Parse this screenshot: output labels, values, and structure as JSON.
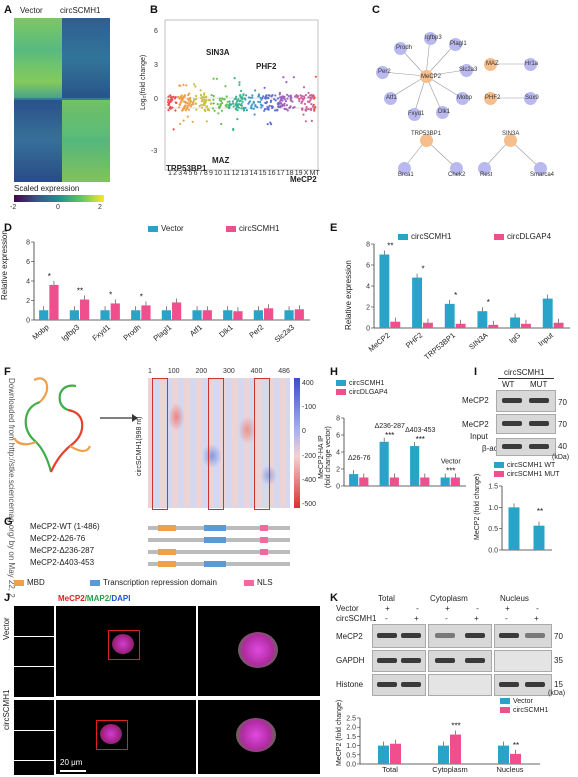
{
  "panels": {
    "A": {
      "label": "A",
      "col_labels": [
        "Vector",
        "circSCMH1"
      ],
      "scale_title": "Scaled expression",
      "scale_ticks": [
        "-2",
        "0",
        "2"
      ]
    },
    "B": {
      "label": "B",
      "ylabel": "Log₂(fold change)",
      "yticks": [
        "6",
        "3",
        "0",
        "-3"
      ],
      "xticks": [
        "1",
        "2",
        "3",
        "4",
        "5",
        "6",
        "7",
        "8",
        "9",
        "10",
        "11",
        "12",
        "13",
        "14",
        "15",
        "16",
        "17",
        "18",
        "19",
        "X",
        "MT"
      ],
      "annotations": [
        "SIN3A",
        "PHF2",
        "TRP53BP1",
        "MAZ",
        "MeCP2"
      ]
    },
    "C": {
      "label": "C",
      "mecp2_network": {
        "hub": "MeCP2",
        "targets": [
          "Prodh",
          "Igfbp3",
          "Plagl1",
          "Slc2a3",
          "Mobp",
          "Dlk1",
          "Fxyd1",
          "Atf1",
          "Per2"
        ]
      },
      "maz_pair": [
        "MAZ",
        "Hr1a"
      ],
      "phf2_pair": [
        "PHF2",
        "Sox9"
      ],
      "trp53bp1_network": {
        "hub": "TRP53BP1",
        "targets": [
          "Brca1",
          "Chek2"
        ]
      },
      "sin3a_network": {
        "hub": "SIN3A",
        "targets": [
          "Rest",
          "Smarca4"
        ]
      }
    },
    "D": {
      "label": "D",
      "legend": [
        "Vector",
        "circSCMH1"
      ]
    },
    "E": {
      "label": "E",
      "legend": [
        "circSCMH1",
        "circDLGAP4"
      ]
    },
    "F": {
      "label": "F",
      "side_text": "Downloaded from http://stke.sciencemag.org/ by on May 22, 2",
      "heatmap_label": "circSCMH1(998 nt)",
      "top_ticks": [
        "1",
        "100",
        "200",
        "300",
        "400",
        "486"
      ],
      "scale_ticks": [
        "400",
        "-100",
        "0",
        "-200",
        "-400",
        "-500"
      ]
    },
    "G": {
      "label": "G",
      "constructs": [
        "MeCP2-WT (1-486)",
        "MeCP2-Δ26-76",
        "MeCP2-Δ236-287",
        "MeCP2-Δ403-453"
      ],
      "domain_legend": [
        "MBD",
        "Transcription repression domain",
        "NLS"
      ]
    },
    "H": {
      "label": "H",
      "legend": [
        "circSCMH1",
        "circDLGAP4"
      ],
      "ylabel": "MeCP2-HA IP\n(fold change vector)",
      "bar_labels": [
        "Δ26-76",
        "Δ236-287",
        "Δ403-453",
        "Vector"
      ],
      "significance": [
        "***",
        "***",
        "***"
      ]
    },
    "I": {
      "label": "I",
      "header": "circSCMH1",
      "lanes": [
        "WT",
        "MUT"
      ],
      "rows": [
        "MeCP2",
        "MeCP2",
        "β-actin"
      ],
      "input_label": "Input",
      "kda": [
        "70",
        "70",
        "40"
      ],
      "kda_unit": "(kDa)",
      "legend": [
        "circSCMH1 WT",
        "circSCMH1 MUT"
      ],
      "ylabel": "MeCP2 (fold change)",
      "significance": "**"
    },
    "J": {
      "label": "J",
      "title_parts": [
        "MeCP2",
        "/MAP2/",
        "DAPI"
      ],
      "rows": [
        "Vector",
        "circSCMH1"
      ],
      "scale_bar": "20 μm"
    },
    "K": {
      "label": "K",
      "fractions": [
        "Total",
        "Cytoplasm",
        "Nucleus"
      ],
      "row_vector": "Vector",
      "row_circ": "circSCMH1",
      "plus_minus_vector": [
        "+",
        "-",
        "+",
        "-",
        "+",
        "-"
      ],
      "plus_minus_circ": [
        "-",
        "+",
        "-",
        "+",
        "-",
        "+"
      ],
      "blots": [
        "MeCP2",
        "GAPDH",
        "Histone"
      ],
      "kda": [
        "70",
        "35",
        "15"
      ],
      "kda_unit": "(kDa)",
      "legend": [
        "Vector",
        "circSCMH1"
      ],
      "ylabel": "MeCP2 (fold change)",
      "significance": [
        "***",
        "**"
      ]
    }
  },
  "colors": {
    "vector_blue": "#2aa3c9",
    "circ_pink": "#ef4f8c",
    "node_blue": "#b9b9f0",
    "node_orange": "#f5be8c",
    "mbd_orange": "#f0a04a",
    "trd_blue": "#5b9bd5",
    "nls_pink": "#f06aa0"
  },
  "chart_data": [
    {
      "type": "bar",
      "panel": "D",
      "ylabel": "Relative expression",
      "ylim": [
        0,
        8
      ],
      "yticks": [
        "0",
        "2",
        "4",
        "6",
        "8"
      ],
      "categories": [
        "Mobp",
        "Igfbp3",
        "Fxyd1",
        "Prodh",
        "Plagl1",
        "Atf1",
        "Dlk1",
        "Per2",
        "Slc2a3"
      ],
      "series": [
        {
          "name": "Vector",
          "values": [
            1,
            1,
            1,
            1,
            1,
            1,
            1,
            1,
            1
          ]
        },
        {
          "name": "circSCMH1",
          "values": [
            3.6,
            2.1,
            1.7,
            1.5,
            1.8,
            1.0,
            0.9,
            1.2,
            1.1
          ]
        }
      ],
      "significance": [
        "*",
        "**",
        "*",
        "*",
        "",
        "",
        "",
        "",
        ""
      ]
    },
    {
      "type": "bar",
      "panel": "E",
      "ylabel": "Relative expression",
      "ylim": [
        0,
        8
      ],
      "yticks": [
        "0",
        "2",
        "4",
        "6",
        "8"
      ],
      "categories": [
        "MeCP2",
        "PHF2",
        "TRP53BP1",
        "SIN3A",
        "IgG",
        "Input"
      ],
      "series": [
        {
          "name": "circSCMH1",
          "values": [
            7.0,
            4.8,
            2.3,
            1.6,
            1.0,
            2.8
          ]
        },
        {
          "name": "circDLGAP4",
          "values": [
            0.6,
            0.5,
            0.4,
            0.3,
            0.4,
            0.5
          ]
        }
      ],
      "significance": [
        "**",
        "*",
        "*",
        "*",
        "",
        ""
      ]
    },
    {
      "type": "bar",
      "panel": "H",
      "ylim": [
        0,
        8
      ],
      "yticks": [
        "0",
        "2",
        "4",
        "6",
        "8"
      ],
      "categories": [
        "Δ26-76",
        "Δ236-287",
        "Δ403-453",
        "Vector"
      ],
      "series": [
        {
          "name": "circSCMH1",
          "values": [
            1.4,
            5.2,
            4.7,
            1.0
          ]
        },
        {
          "name": "circDLGAP4",
          "values": [
            1.0,
            1.0,
            1.0,
            1.0
          ]
        }
      ]
    },
    {
      "type": "bar",
      "panel": "I",
      "ylabel": "MeCP2 (fold change)",
      "ylim": [
        0,
        1.5
      ],
      "yticks": [
        "0.0",
        "0.5",
        "1.0",
        "1.5"
      ],
      "categories": [
        "circSCMH1 WT",
        "circSCMH1 MUT"
      ],
      "values": [
        1.0,
        0.57
      ]
    },
    {
      "type": "bar",
      "panel": "K",
      "ylabel": "MeCP2 (fold change)",
      "ylim": [
        0,
        2.5
      ],
      "yticks": [
        "0.0",
        "0.5",
        "1.0",
        "1.5",
        "2.0",
        "2.5"
      ],
      "categories": [
        "Total",
        "Cytoplasm",
        "Nucleus"
      ],
      "series": [
        {
          "name": "Vector",
          "values": [
            1.0,
            1.0,
            1.0
          ]
        },
        {
          "name": "circSCMH1",
          "values": [
            1.1,
            1.6,
            0.55
          ]
        }
      ]
    }
  ]
}
